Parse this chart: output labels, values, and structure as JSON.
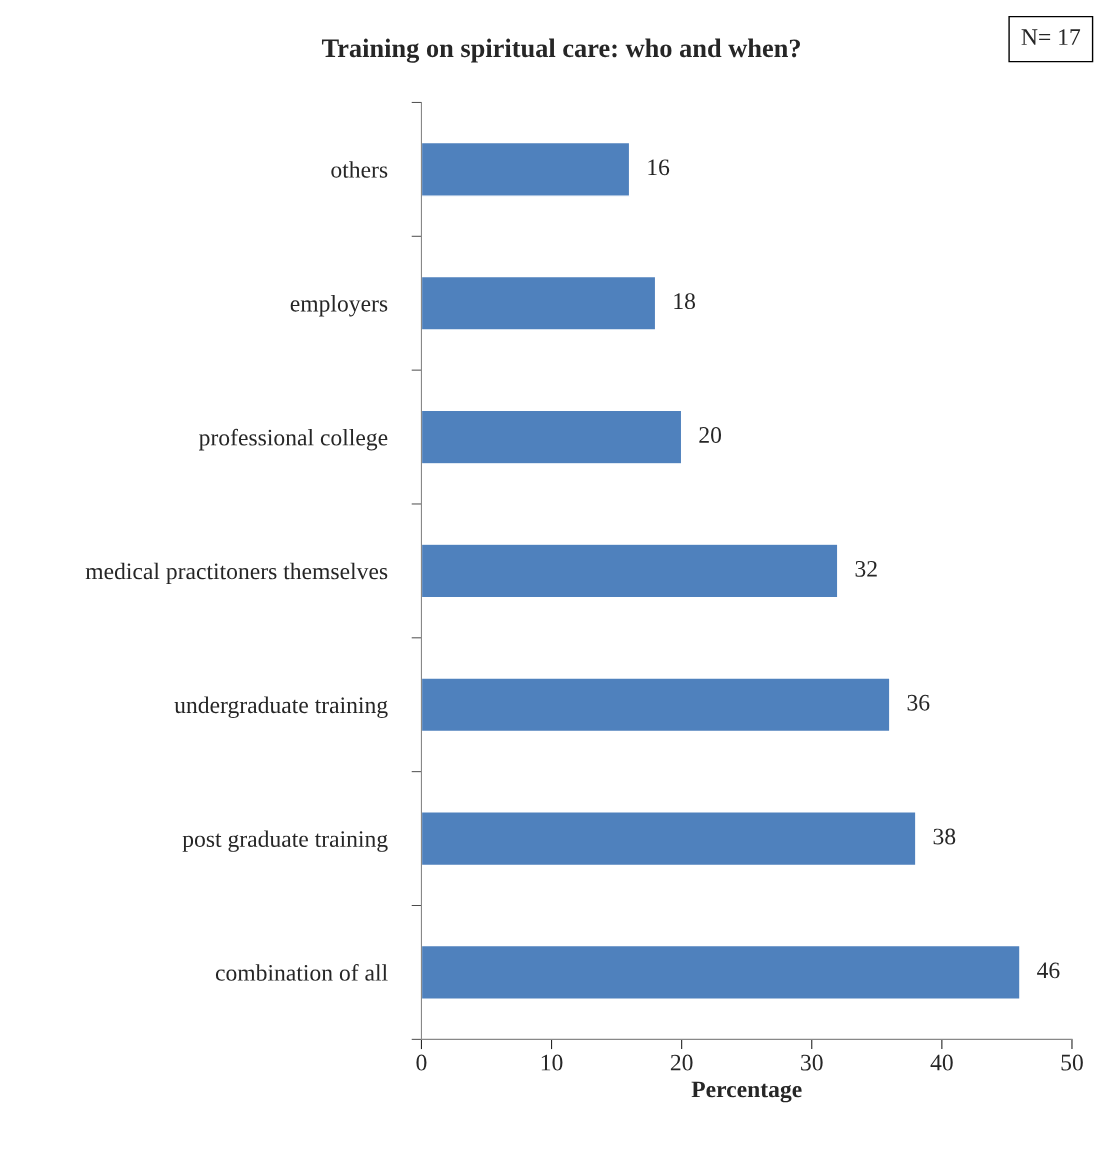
{
  "chart_data": {
    "type": "bar",
    "orientation": "horizontal",
    "title": "Training on spiritual care: who and when?",
    "xlabel": "Percentage",
    "categories": [
      "others",
      "employers",
      "professional college",
      "medical practitoners themselves",
      "undergraduate training",
      "post graduate training",
      "combination of all"
    ],
    "values": [
      16,
      18,
      20,
      32,
      36,
      38,
      46
    ],
    "color": "#4f81bd",
    "xlim": [
      0,
      50
    ],
    "xticks": [
      0,
      10,
      20,
      30,
      40,
      50
    ],
    "grid": false,
    "data_labels": true,
    "annotations": [
      "N= 17"
    ]
  }
}
